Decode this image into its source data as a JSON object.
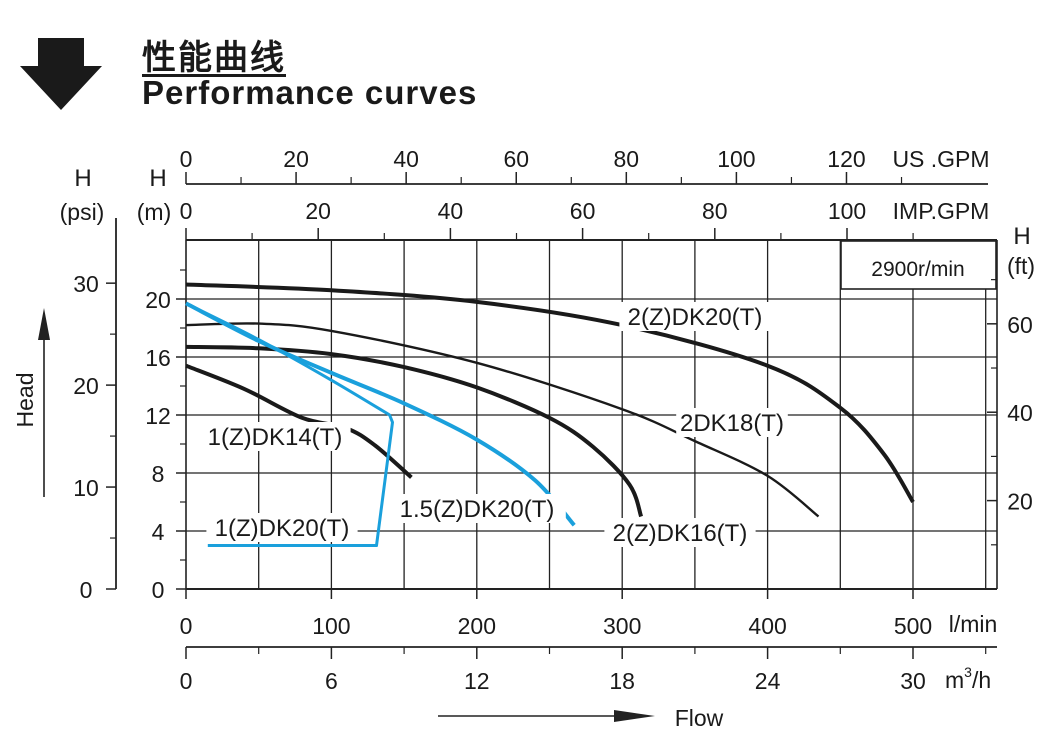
{
  "header": {
    "title_cn": "性能曲线",
    "title_en": "Performance curves"
  },
  "icons": {
    "header_arrow": "down-arrow-icon",
    "flow_arrow": "right-arrow-icon",
    "head_arrow": "up-arrow-icon"
  },
  "colors": {
    "black": "#1a1a1a",
    "blue": "#1aa0dc",
    "grid": "#222222"
  },
  "chart_data": {
    "type": "line",
    "speed_label": "2900r/min",
    "x_axis_flow": {
      "unit": "l/min",
      "range": [
        0,
        560
      ],
      "ticks": [
        0,
        100,
        200,
        300,
        400,
        500
      ],
      "grid_step": 50
    },
    "x_axis_m3h": {
      "unit": "m³/h",
      "ticks": [
        0,
        6,
        12,
        18,
        24,
        30
      ],
      "unit_base": "m",
      "unit_sup": "3",
      "unit_tail": "/h"
    },
    "x_axis_usgpm": {
      "unit": "US .GPM",
      "ticks": [
        0,
        20,
        40,
        60,
        80,
        100,
        120
      ]
    },
    "x_axis_impgpm": {
      "unit": "IMP.GPM",
      "ticks": [
        0,
        20,
        40,
        60,
        80,
        100
      ]
    },
    "y_axis_m": {
      "label_top": "H",
      "label_bottom": "(m)",
      "range": [
        0,
        24
      ],
      "ticks": [
        0,
        4,
        8,
        12,
        16,
        20
      ],
      "grid_step": 4
    },
    "y_axis_psi": {
      "label_top": "H",
      "label_bottom": "(psi)",
      "ticks": [
        0,
        10,
        20,
        30
      ]
    },
    "y_axis_ft": {
      "label_top": "H",
      "label_bottom": "(ft)",
      "ticks": [
        20,
        40,
        60
      ]
    },
    "x_caption": "Flow",
    "y_caption": "Head",
    "series": [
      {
        "name": "2(Z)DK20(T)",
        "color": "#1a1a1a",
        "points": [
          [
            0,
            21.0
          ],
          [
            100,
            20.6
          ],
          [
            200,
            19.8
          ],
          [
            300,
            18.2
          ],
          [
            400,
            15.4
          ],
          [
            450,
            12.5
          ],
          [
            480,
            9.3
          ],
          [
            500,
            6.0
          ]
        ]
      },
      {
        "name": "2DK18(T)",
        "color": "#1a1a1a",
        "points": [
          [
            0,
            18.2
          ],
          [
            50,
            18.3
          ],
          [
            100,
            17.8
          ],
          [
            200,
            15.6
          ],
          [
            300,
            12.4
          ],
          [
            350,
            10.2
          ],
          [
            400,
            7.8
          ],
          [
            435,
            5.0
          ]
        ]
      },
      {
        "name": "2(Z)DK16(T)",
        "color": "#1a1a1a",
        "points": [
          [
            0,
            16.7
          ],
          [
            50,
            16.6
          ],
          [
            100,
            16.2
          ],
          [
            150,
            15.3
          ],
          [
            200,
            13.9
          ],
          [
            250,
            11.8
          ],
          [
            280,
            9.8
          ],
          [
            305,
            7.2
          ],
          [
            313,
            5.0
          ]
        ]
      },
      {
        "name": "1(Z)DK14(T)",
        "color": "#1a1a1a",
        "points": [
          [
            0,
            15.4
          ],
          [
            40,
            13.8
          ],
          [
            80,
            11.8
          ],
          [
            110,
            11.1
          ],
          [
            130,
            9.9
          ],
          [
            155,
            7.7
          ]
        ]
      },
      {
        "name": "1.5(Z)DK20(T)",
        "color": "#1aa0dc",
        "points": [
          [
            0,
            19.7
          ],
          [
            50,
            17.1
          ],
          [
            100,
            14.9
          ],
          [
            150,
            12.8
          ],
          [
            200,
            10.3
          ],
          [
            240,
            7.5
          ],
          [
            267,
            4.4
          ]
        ]
      },
      {
        "name": "1(Z)DK20(T)",
        "color": "#1aa0dc",
        "points": [
          [
            0,
            19.7
          ],
          [
            50,
            17.2
          ],
          [
            100,
            14.4
          ],
          [
            140,
            12.0
          ],
          [
            142,
            11.5
          ],
          [
            131,
            3.0
          ],
          [
            15,
            3.0
          ]
        ]
      }
    ]
  }
}
